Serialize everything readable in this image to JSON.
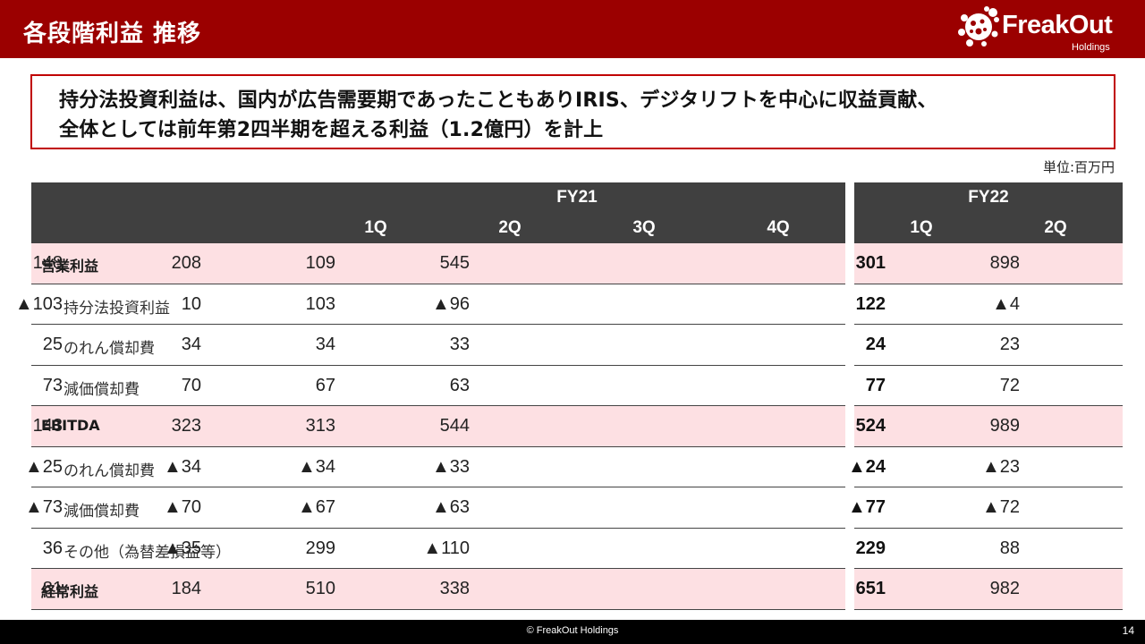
{
  "header": {
    "title": "各段階利益 推移"
  },
  "logo": {
    "name": "FreakOut",
    "sub": "Holdings",
    "icon": "freakout-logo-icon"
  },
  "callout": {
    "line1": "持分法投資利益は、国内が広告需要期であったこともありIRIS、デジタリフトを中心に収益貢献、",
    "line2": "全体としては前年第2四半期を超える利益（1.2億円）を計上"
  },
  "unit": "単位:百万円",
  "table": {
    "fy21": {
      "label": "FY21",
      "quarters": [
        "1Q",
        "2Q",
        "3Q",
        "4Q"
      ]
    },
    "fy22": {
      "label": "FY22",
      "quarters": [
        "1Q",
        "2Q"
      ]
    },
    "rows": [
      {
        "label": "営業利益",
        "main": true,
        "fy21": [
          "545",
          "109",
          "208",
          "148"
        ],
        "fy22": [
          "898",
          "301"
        ]
      },
      {
        "label": "持分法投資利益",
        "main": false,
        "fy21": [
          "▲96",
          "103",
          "10",
          "▲103"
        ],
        "fy22": [
          "▲4",
          "122"
        ]
      },
      {
        "label": "のれん償却費",
        "main": false,
        "fy21": [
          "33",
          "34",
          "34",
          "25"
        ],
        "fy22": [
          "23",
          "24"
        ]
      },
      {
        "label": "減価償却費",
        "main": false,
        "fy21": [
          "63",
          "67",
          "70",
          "73"
        ],
        "fy22": [
          "72",
          "77"
        ]
      },
      {
        "label": "EBITDA",
        "main": true,
        "fy21": [
          "544",
          "313",
          "323",
          "143"
        ],
        "fy22": [
          "989",
          "524"
        ]
      },
      {
        "label": "のれん償却費",
        "main": false,
        "fy21": [
          "▲33",
          "▲34",
          "▲34",
          "▲25"
        ],
        "fy22": [
          "▲23",
          "▲24"
        ]
      },
      {
        "label": "減価償却費",
        "main": false,
        "fy21": [
          "▲63",
          "▲67",
          "▲70",
          "▲73"
        ],
        "fy22": [
          "▲72",
          "▲77"
        ]
      },
      {
        "label": "その他（為替差損益等）",
        "main": false,
        "fy21": [
          "▲110",
          "299",
          "▲35",
          "36"
        ],
        "fy22": [
          "88",
          "229"
        ]
      },
      {
        "label": "経常利益",
        "main": true,
        "fy21": [
          "338",
          "510",
          "184",
          "81"
        ],
        "fy22": [
          "982",
          "651"
        ]
      }
    ]
  },
  "footer": {
    "copyright": "© FreakOut Holdings",
    "page": "14"
  },
  "colors": {
    "header_bg": "#9b0000",
    "callout_border": "#c00000",
    "table_header_bg": "#404040",
    "highlight_row_bg": "#fde0e3",
    "footer_bg": "#000000"
  }
}
